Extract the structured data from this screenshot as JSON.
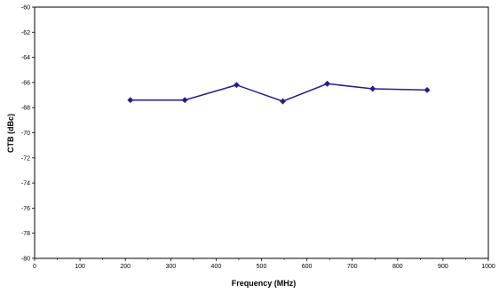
{
  "chart_data": {
    "type": "line",
    "xlabel": "Frequency (MHz)",
    "ylabel": "CTB (dBc)",
    "xlim": [
      0,
      1000
    ],
    "ylim": [
      -80,
      -60
    ],
    "x_ticks": [
      "0",
      "100",
      "200",
      "300",
      "400",
      "500",
      "600",
      "700",
      "800",
      "900",
      "1000"
    ],
    "y_ticks": [
      "-60",
      "-62",
      "-64",
      "-66",
      "-68",
      "-70",
      "-72",
      "-74",
      "-76",
      "-78",
      "-80"
    ],
    "grid": true,
    "legend": "none",
    "series": [
      {
        "x": [
          211,
          331,
          445,
          547,
          645,
          745,
          865
        ],
        "values": [
          -67.4,
          -67.4,
          -66.2,
          -67.5,
          -66.1,
          -66.5,
          -66.6
        ],
        "color": "#1f1f8f",
        "marker": "diamond"
      }
    ],
    "colors": {
      "grid": "#000000",
      "line": "#1f1f8f"
    }
  }
}
